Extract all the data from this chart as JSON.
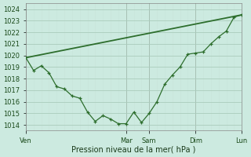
{
  "background_color": "#cceae0",
  "grid_color_major": "#aaccbb",
  "grid_color_minor": "#c8e4da",
  "vline_color": "#998899",
  "line_color": "#2d6e2d",
  "xlabel": "Pression niveau de la mer( hPa )",
  "ylim": [
    1013.5,
    1024.5
  ],
  "yticks": [
    1014,
    1015,
    1016,
    1017,
    1018,
    1019,
    1020,
    1021,
    1022,
    1023,
    1024
  ],
  "x_tick_labels": [
    "Ven",
    "Mar",
    "Sam",
    "Dim",
    "Lun"
  ],
  "x_tick_positions": [
    0,
    13,
    16,
    22,
    28
  ],
  "vline_positions": [
    0,
    13,
    16,
    22,
    28
  ],
  "total_x": 28,
  "series1_x": [
    0,
    28
  ],
  "series1_y": [
    1019.8,
    1023.5
  ],
  "series2_x": [
    0,
    1,
    2,
    3,
    4,
    5,
    6,
    7,
    8,
    9,
    10,
    11,
    12,
    13,
    14,
    15,
    16,
    17,
    18,
    19,
    20,
    21,
    22,
    23,
    24,
    25,
    26,
    27,
    28
  ],
  "series2_y": [
    1019.8,
    1018.7,
    1019.1,
    1018.5,
    1017.3,
    1017.1,
    1016.5,
    1016.3,
    1015.1,
    1014.3,
    1014.8,
    1014.5,
    1014.1,
    1014.1,
    1015.1,
    1014.2,
    1015.0,
    1016.0,
    1017.5,
    1018.3,
    1019.0,
    1020.1,
    1020.2,
    1020.3,
    1021.0,
    1021.6,
    1022.1,
    1023.3,
    1023.5
  ],
  "xlabel_fontsize": 7,
  "ytick_fontsize": 6,
  "xtick_fontsize": 6
}
